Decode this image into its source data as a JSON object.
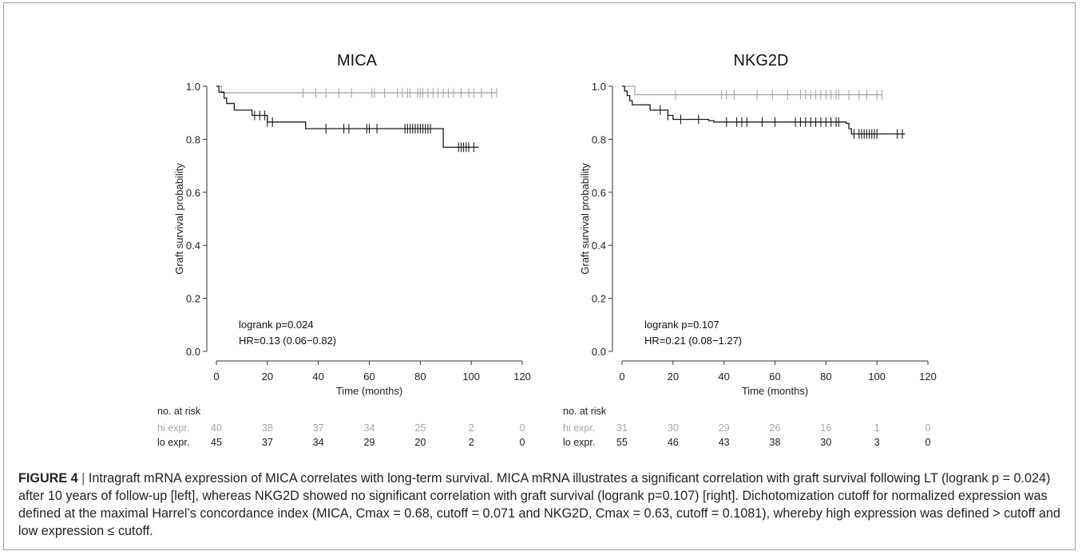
{
  "chart_data": [
    {
      "type": "line",
      "subtype": "kaplan-meier",
      "title": "MICA",
      "xlabel": "Time (months)",
      "ylabel": "Graft survival probability",
      "xlim": [
        0,
        120
      ],
      "ylim": [
        0,
        1
      ],
      "xticks": [
        "0",
        "20",
        "40",
        "60",
        "80",
        "100",
        "120"
      ],
      "yticks": [
        "0.0",
        "0.2",
        "0.4",
        "0.6",
        "0.8",
        "1.0"
      ],
      "grid": false,
      "annotations": [
        "logrank p=0.024",
        "HR=0.13 (0.06−0.82)"
      ],
      "series": [
        {
          "name": "hi expr.",
          "color": "#a6a6a6",
          "steps": [
            [
              0,
              1.0
            ],
            [
              2,
              0.975
            ],
            [
              110,
              0.975
            ]
          ],
          "censors": [
            34,
            39,
            43,
            48,
            53,
            61,
            62,
            66,
            71,
            73,
            75,
            76,
            79,
            80,
            81,
            83,
            85,
            87,
            89,
            91,
            93,
            96,
            99,
            101,
            104,
            108,
            110
          ]
        },
        {
          "name": "lo expr.",
          "color": "#1a1a1a",
          "steps": [
            [
              0,
              1.0
            ],
            [
              1,
              0.978
            ],
            [
              3,
              0.955
            ],
            [
              4,
              0.935
            ],
            [
              7,
              0.91
            ],
            [
              14,
              0.89
            ],
            [
              20,
              0.865
            ],
            [
              35,
              0.84
            ],
            [
              89,
              0.77
            ],
            [
              103,
              0.77
            ]
          ],
          "censors": [
            15,
            17,
            19,
            20,
            22,
            43,
            50,
            52,
            59,
            60,
            63,
            74,
            75,
            76,
            77,
            78,
            79,
            80,
            81,
            82,
            83,
            84,
            95,
            96,
            97,
            98,
            99,
            101
          ]
        }
      ],
      "risk_table": {
        "header": "no. at risk",
        "times": [
          0,
          20,
          40,
          60,
          80,
          100,
          120
        ],
        "rows": [
          {
            "label": "hi expr.",
            "color": "#a6a6a6",
            "values": [
              "40",
              "38",
              "37",
              "34",
              "25",
              "2",
              "0"
            ]
          },
          {
            "label": "lo expr.",
            "color": "#1a1a1a",
            "values": [
              "45",
              "37",
              "34",
              "29",
              "20",
              "2",
              "0"
            ]
          }
        ]
      }
    },
    {
      "type": "line",
      "subtype": "kaplan-meier",
      "title": "NKG2D",
      "xlabel": "Time (months)",
      "ylabel": "Graft survival probability",
      "xlim": [
        0,
        120
      ],
      "ylim": [
        0,
        1
      ],
      "xticks": [
        "0",
        "20",
        "40",
        "60",
        "80",
        "100",
        "120"
      ],
      "yticks": [
        "0.0",
        "0.2",
        "0.4",
        "0.6",
        "0.8",
        "1.0"
      ],
      "grid": false,
      "annotations": [
        "logrank p=0.107",
        "HR=0.21 (0.08−1.27)"
      ],
      "series": [
        {
          "name": "hi expr.",
          "color": "#a6a6a6",
          "steps": [
            [
              0,
              1.0
            ],
            [
              5,
              0.968
            ],
            [
              102,
              0.968
            ]
          ],
          "censors": [
            21,
            39,
            41,
            44,
            53,
            59,
            65,
            70,
            72,
            74,
            76,
            78,
            80,
            82,
            84,
            85,
            89,
            93,
            96,
            100,
            102
          ]
        },
        {
          "name": "lo expr.",
          "color": "#1a1a1a",
          "steps": [
            [
              0,
              1.0
            ],
            [
              1,
              0.982
            ],
            [
              2,
              0.965
            ],
            [
              3,
              0.945
            ],
            [
              4,
              0.93
            ],
            [
              11,
              0.91
            ],
            [
              18,
              0.89
            ],
            [
              20,
              0.875
            ],
            [
              34,
              0.87
            ],
            [
              36,
              0.865
            ],
            [
              88,
              0.86
            ],
            [
              89,
              0.84
            ],
            [
              90,
              0.82
            ],
            [
              111,
              0.82
            ]
          ],
          "censors": [
            15,
            18,
            23,
            30,
            41,
            45,
            47,
            49,
            55,
            60,
            68,
            70,
            72,
            74,
            76,
            78,
            80,
            82,
            84,
            85,
            91,
            93,
            94,
            95,
            96,
            97,
            98,
            99,
            100,
            108,
            110
          ]
        }
      ],
      "risk_table": {
        "header": "no. at risk",
        "times": [
          0,
          20,
          40,
          60,
          80,
          100,
          120
        ],
        "rows": [
          {
            "label": "hi expr.",
            "color": "#a6a6a6",
            "values": [
              "31",
              "30",
              "29",
              "26",
              "16",
              "1",
              "0"
            ]
          },
          {
            "label": "lo expr.",
            "color": "#1a1a1a",
            "values": [
              "55",
              "46",
              "43",
              "38",
              "30",
              "3",
              "0"
            ]
          }
        ]
      }
    }
  ],
  "caption": {
    "label": "FIGURE 4",
    "separator": "|",
    "text": "Intragraft mRNA expression of MICA correlates with long-term survival. MICA mRNA illustrates a significant correlation with graft survival following LT (logrank p = 0.024) after 10 years of follow-up [left], whereas NKG2D showed no significant correlation with graft survival (logrank p=0.107) [right]. Dichotomization cutoff for normalized expression was defined at the maximal Harrel’s concordance index (MICA, Cmax = 0.68, cutoff = 0.071 and NKG2D, Cmax = 0.63, cutoff = 0.1081), whereby high expression was defined > cutoff and low expression ≤ cutoff."
  }
}
